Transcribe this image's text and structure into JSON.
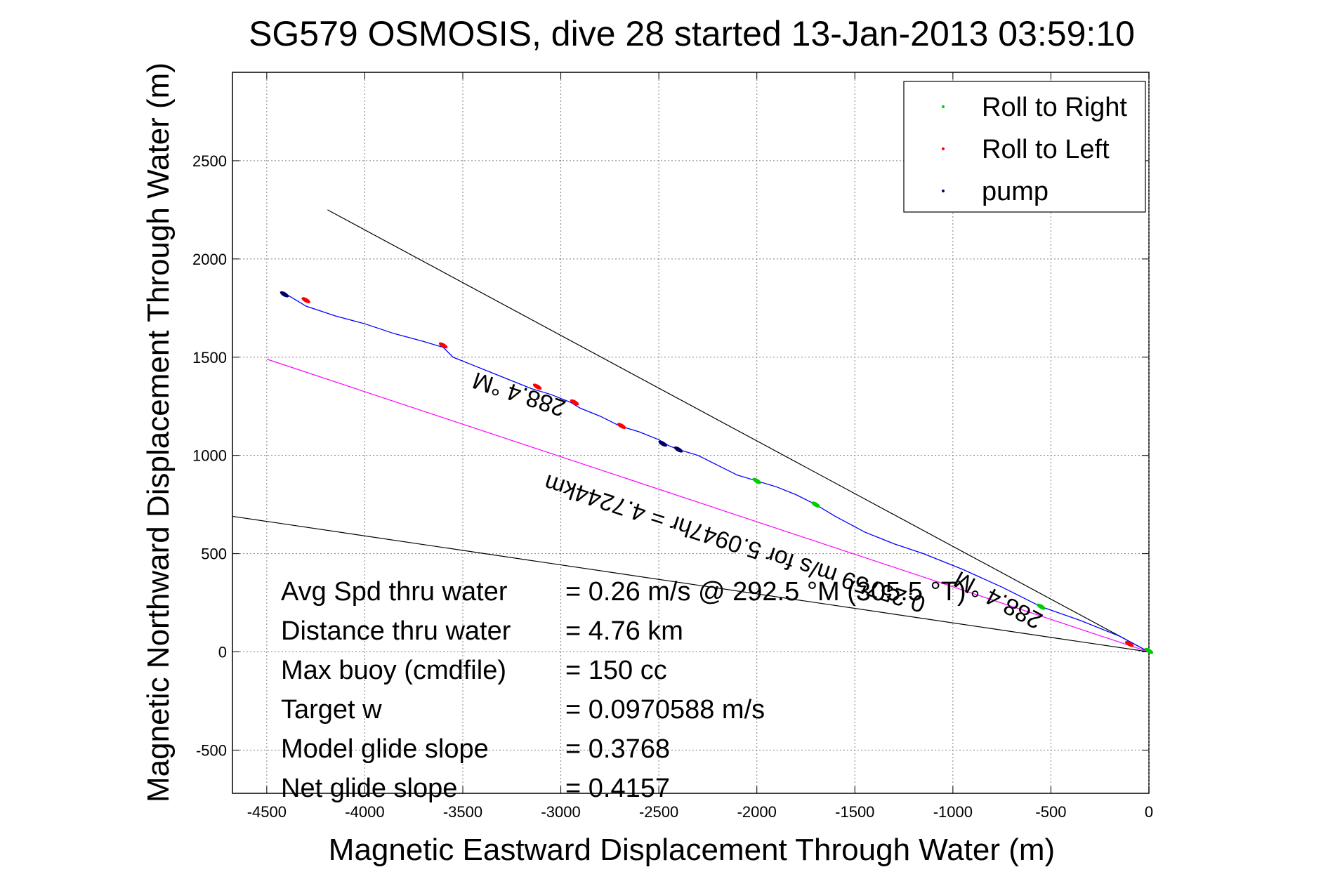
{
  "chart_data": {
    "type": "line",
    "title": "SG579 OSMOSIS, dive 28 started 13-Jan-2013 03:59:10",
    "xlabel": "Magnetic Eastward Displacement Through Water (m)",
    "ylabel": "Magnetic Northward Displacement Through Water (m)",
    "xlim": [
      -4675,
      0
    ],
    "ylim": [
      -720,
      2950
    ],
    "xticks": [
      -4500,
      -4000,
      -3500,
      -3000,
      -2500,
      -2000,
      -1500,
      -1000,
      -500,
      0
    ],
    "yticks": [
      -500,
      0,
      500,
      1000,
      1500,
      2000,
      2500
    ],
    "grid": true,
    "legend_position": "top-right",
    "legend": [
      {
        "label": "Roll to Right",
        "color": "#00cc00"
      },
      {
        "label": "Roll to Left",
        "color": "#ff0000"
      },
      {
        "label": "pump",
        "color": "#000066"
      }
    ],
    "series": [
      {
        "color": "#0000ff",
        "x": [
          0,
          -150,
          -350,
          -550,
          -750,
          -950,
          -1150,
          -1300,
          -1450,
          -1600,
          -1700,
          -1800,
          -1900,
          -2000,
          -2100,
          -2200,
          -2300,
          -2400,
          -2450,
          -2500,
          -2600,
          -2700,
          -2800,
          -2900,
          -2950,
          -3050,
          -3150,
          -3250,
          -3350,
          -3450,
          -3550,
          -3600,
          -3700,
          -3850,
          -4000,
          -4150,
          -4300,
          -4350,
          -4400
        ],
        "y": [
          0,
          80,
          160,
          230,
          330,
          420,
          500,
          550,
          610,
          690,
          750,
          800,
          840,
          870,
          900,
          950,
          1000,
          1030,
          1050,
          1080,
          1120,
          1150,
          1200,
          1240,
          1270,
          1310,
          1340,
          1380,
          1420,
          1460,
          1500,
          1550,
          1580,
          1620,
          1670,
          1710,
          1760,
          1790,
          1820
        ]
      }
    ],
    "heading_lines": [
      {
        "color": "#000000",
        "x": [
          -4190,
          0
        ],
        "y": [
          2250,
          0
        ]
      },
      {
        "color": "#000000",
        "x": [
          -4675,
          0
        ],
        "y": [
          690,
          0
        ]
      },
      {
        "color": "#ff00ff",
        "x": [
          -4500,
          0
        ],
        "y": [
          1490,
          0
        ]
      }
    ],
    "roll_right_points": [
      {
        "x": -2000,
        "y": 870
      },
      {
        "x": -1700,
        "y": 750
      },
      {
        "x": -550,
        "y": 230
      },
      {
        "x": 0,
        "y": 5
      }
    ],
    "roll_left_points": [
      {
        "x": -4300,
        "y": 1790
      },
      {
        "x": -3600,
        "y": 1560
      },
      {
        "x": -3120,
        "y": 1350
      },
      {
        "x": -2930,
        "y": 1270
      },
      {
        "x": -2690,
        "y": 1150
      },
      {
        "x": -100,
        "y": 40
      }
    ],
    "pump_points": [
      {
        "x": -4410,
        "y": 1820
      },
      {
        "x": -2480,
        "y": 1060
      },
      {
        "x": -2400,
        "y": 1030
      }
    ],
    "rotated_annotations": [
      {
        "text": "288.4 °M",
        "x": -3200,
        "y": 1350,
        "angle": 18
      },
      {
        "text": "0.25759 m/s for 5.0947hr = 4.7244km",
        "x": -2100,
        "y": 590,
        "angle": 18
      },
      {
        "text": "288.4 °M",
        "x": -750,
        "y": 300,
        "angle": 28
      }
    ],
    "stats": [
      {
        "label": "Avg Spd thru water",
        "value": "=  0.26 m/s @ 292.5 °M (305.5 °T)"
      },
      {
        "label": "Distance thru water",
        "value": "=  4.76 km"
      },
      {
        "label": "Max buoy (cmdfile)",
        "value": "= 150 cc"
      },
      {
        "label": "Target w",
        "value": "= 0.0970588 m/s"
      },
      {
        "label": "Model glide slope",
        "value": "= 0.3768"
      },
      {
        "label": "Net glide slope",
        "value": "= 0.4157"
      }
    ]
  }
}
